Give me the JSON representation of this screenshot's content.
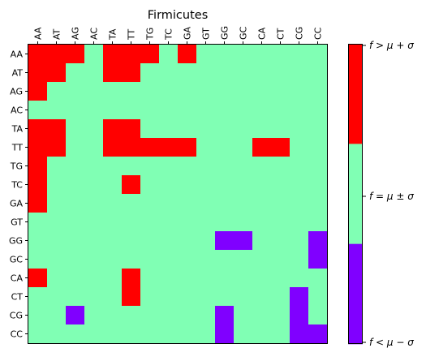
{
  "chart_data": {
    "type": "heatmap",
    "title": "Firmicutes",
    "x_categories": [
      "AA",
      "AT",
      "AG",
      "AC",
      "TA",
      "TT",
      "TG",
      "TC",
      "GA",
      "GT",
      "GG",
      "GC",
      "CA",
      "CT",
      "CG",
      "CC"
    ],
    "y_categories": [
      "AA",
      "AT",
      "AG",
      "AC",
      "TA",
      "TT",
      "TG",
      "TC",
      "GA",
      "GT",
      "GG",
      "GC",
      "CA",
      "CT",
      "CG",
      "CC"
    ],
    "value_levels": {
      "below": -1,
      "within": 0,
      "above": 1
    },
    "values": [
      [
        1,
        1,
        1,
        0,
        1,
        1,
        1,
        0,
        1,
        0,
        0,
        0,
        0,
        0,
        0,
        0
      ],
      [
        1,
        1,
        0,
        0,
        1,
        1,
        0,
        0,
        0,
        0,
        0,
        0,
        0,
        0,
        0,
        0
      ],
      [
        1,
        0,
        0,
        0,
        0,
        0,
        0,
        0,
        0,
        0,
        0,
        0,
        0,
        0,
        0,
        0
      ],
      [
        0,
        0,
        0,
        0,
        0,
        0,
        0,
        0,
        0,
        0,
        0,
        0,
        0,
        0,
        0,
        0
      ],
      [
        1,
        1,
        0,
        0,
        1,
        1,
        0,
        0,
        0,
        0,
        0,
        0,
        0,
        0,
        0,
        0
      ],
      [
        1,
        1,
        0,
        0,
        1,
        1,
        1,
        1,
        1,
        0,
        0,
        0,
        1,
        1,
        0,
        0
      ],
      [
        1,
        0,
        0,
        0,
        0,
        0,
        0,
        0,
        0,
        0,
        0,
        0,
        0,
        0,
        0,
        0
      ],
      [
        1,
        0,
        0,
        0,
        0,
        1,
        0,
        0,
        0,
        0,
        0,
        0,
        0,
        0,
        0,
        0
      ],
      [
        1,
        0,
        0,
        0,
        0,
        0,
        0,
        0,
        0,
        0,
        0,
        0,
        0,
        0,
        0,
        0
      ],
      [
        0,
        0,
        0,
        0,
        0,
        0,
        0,
        0,
        0,
        0,
        0,
        0,
        0,
        0,
        0,
        0
      ],
      [
        0,
        0,
        0,
        0,
        0,
        0,
        0,
        0,
        0,
        0,
        -1,
        -1,
        0,
        0,
        0,
        -1
      ],
      [
        0,
        0,
        0,
        0,
        0,
        0,
        0,
        0,
        0,
        0,
        0,
        0,
        0,
        0,
        0,
        -1
      ],
      [
        1,
        0,
        0,
        0,
        0,
        1,
        0,
        0,
        0,
        0,
        0,
        0,
        0,
        0,
        0,
        0
      ],
      [
        0,
        0,
        0,
        0,
        0,
        1,
        0,
        0,
        0,
        0,
        0,
        0,
        0,
        0,
        -1,
        0
      ],
      [
        0,
        0,
        -1,
        0,
        0,
        0,
        0,
        0,
        0,
        0,
        -1,
        0,
        0,
        0,
        -1,
        0
      ],
      [
        0,
        0,
        0,
        0,
        0,
        0,
        0,
        0,
        0,
        0,
        -1,
        0,
        0,
        0,
        -1,
        -1
      ]
    ],
    "colors": {
      "above": "#ff0000",
      "within": "#80ffb4",
      "below": "#8000ff"
    },
    "colorbar": {
      "labels": {
        "above": "f > μ + σ",
        "within": "f = μ ± σ",
        "below": "f < μ − σ"
      },
      "order_top_to_bottom": [
        "above",
        "within",
        "below"
      ]
    },
    "x_axis_position": "top",
    "grid": false
  }
}
